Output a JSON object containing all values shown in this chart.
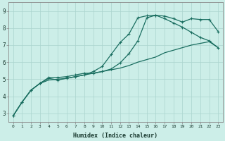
{
  "xlabel": "Humidex (Indice chaleur)",
  "bg_color": "#cceee8",
  "grid_color": "#aad4ce",
  "line_color": "#1a6e60",
  "xlim": [
    -0.5,
    23.5
  ],
  "ylim": [
    2.5,
    9.5
  ],
  "xticks": [
    0,
    1,
    2,
    3,
    4,
    5,
    6,
    7,
    8,
    9,
    10,
    11,
    12,
    13,
    14,
    15,
    16,
    17,
    18,
    19,
    20,
    21,
    22,
    23
  ],
  "yticks": [
    3,
    4,
    5,
    6,
    7,
    8,
    9
  ],
  "line1_x": [
    0,
    1,
    2,
    3,
    4,
    5,
    6,
    7,
    8,
    9,
    10,
    11,
    12,
    13,
    14,
    15,
    16,
    17,
    18,
    19,
    20,
    21,
    22,
    23
  ],
  "line1_y": [
    2.85,
    3.65,
    4.35,
    4.75,
    5.1,
    5.1,
    5.15,
    5.25,
    5.35,
    5.35,
    5.45,
    5.6,
    5.95,
    6.5,
    7.25,
    8.6,
    8.75,
    8.7,
    8.55,
    8.35,
    8.55,
    8.5,
    8.5,
    7.8
  ],
  "line2_x": [
    0,
    1,
    2,
    3,
    4,
    5,
    6,
    7,
    8,
    9,
    10,
    11,
    12,
    13,
    14,
    15,
    16,
    17,
    18,
    19,
    20,
    21,
    22,
    23
  ],
  "line2_y": [
    2.85,
    3.65,
    4.35,
    4.75,
    5.05,
    4.95,
    5.05,
    5.15,
    5.25,
    5.45,
    5.75,
    6.45,
    7.15,
    7.65,
    8.6,
    8.72,
    8.75,
    8.55,
    8.3,
    8.05,
    7.75,
    7.45,
    7.25,
    6.85
  ],
  "line3_x": [
    0,
    1,
    2,
    3,
    4,
    5,
    6,
    7,
    8,
    9,
    10,
    11,
    12,
    13,
    14,
    15,
    16,
    17,
    18,
    19,
    20,
    21,
    22,
    23
  ],
  "line3_y": [
    2.85,
    3.65,
    4.35,
    4.75,
    4.95,
    5.0,
    5.05,
    5.15,
    5.25,
    5.35,
    5.45,
    5.55,
    5.65,
    5.8,
    6.0,
    6.15,
    6.3,
    6.55,
    6.7,
    6.85,
    7.0,
    7.1,
    7.2,
    6.85
  ]
}
